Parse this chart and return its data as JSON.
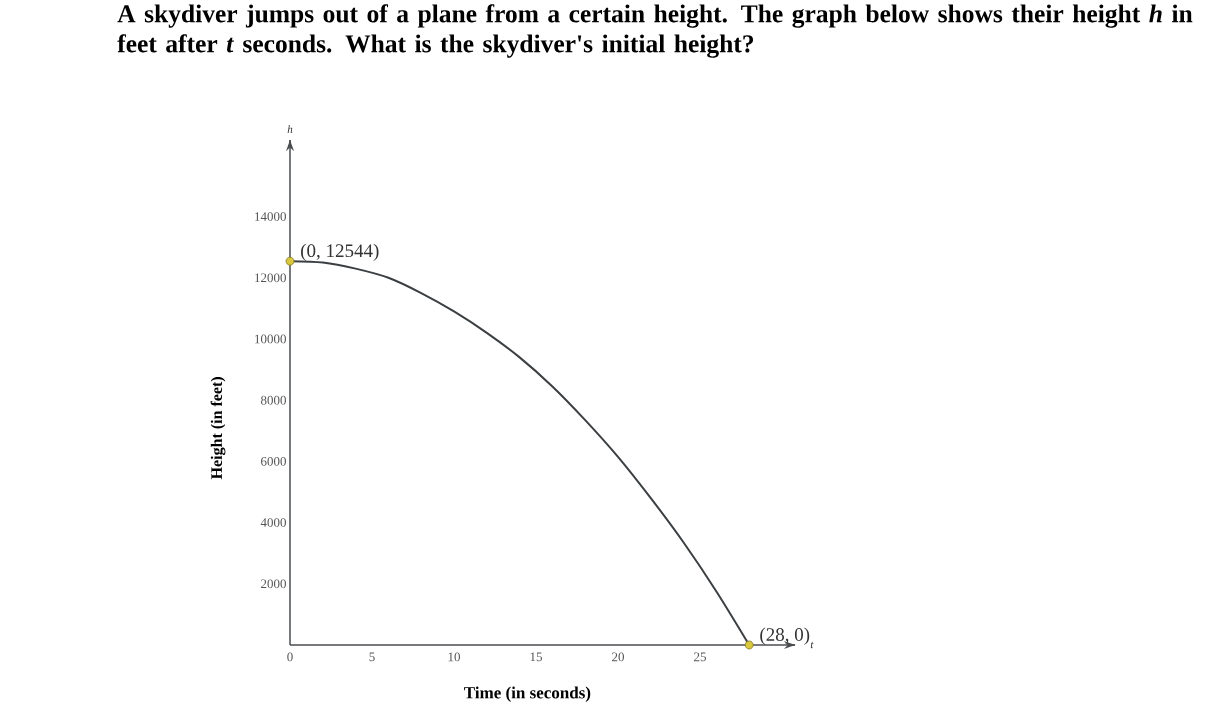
{
  "chart_data": {
    "type": "line",
    "title": "A skydiver jumps out of a plane from a certain height. The graph below shows their height *h* in feet after *t* seconds. What is the skydiver's initial height?",
    "xlabel": "Time (in seconds)",
    "ylabel": "Height (in feet)",
    "x": [
      0,
      2,
      4,
      6,
      8,
      10,
      12,
      14,
      16,
      18,
      20,
      22,
      24,
      26,
      28
    ],
    "series": [
      {
        "color": "#3b3f42",
        "marker": "none",
        "values": [
          12544,
          12500,
          12300,
          12000,
          11500,
          10900,
          10200,
          9400,
          8450,
          7350,
          6150,
          4800,
          3350,
          1750,
          0
        ]
      },
      {
        "type": "scatter",
        "color": "#d9c73c",
        "marker": "circle",
        "x": [
          0,
          28
        ],
        "values": [
          12544,
          0
        ]
      }
    ],
    "xlim": [
      0,
      30.8
    ],
    "ylim": [
      0,
      16500
    ],
    "xticks": [
      0,
      5,
      10,
      15,
      20,
      25
    ],
    "yticks": [
      2000,
      4000,
      6000,
      8000,
      10000,
      12000,
      14000
    ],
    "annotations": [
      {
        "text": "(0, 12544)",
        "x": 0,
        "y": 12544
      },
      {
        "text": "(28, 0)",
        "x": 28,
        "y": 0
      },
      "h",
      "t"
    ]
  }
}
